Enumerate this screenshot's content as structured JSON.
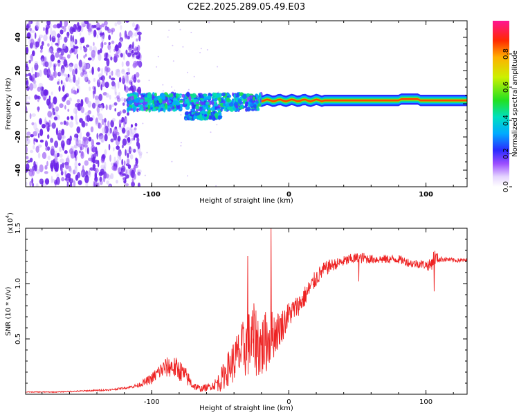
{
  "figure_title": "C2E2.2025.289.05.49.E03",
  "colors": {
    "snr_line": "#ee2222",
    "noise_dots": "#7a3cf0",
    "axis": "#000000"
  },
  "chart_data": [
    {
      "type": "heatmap",
      "id": "spectrogram",
      "title": "C2E2.2025.289.05.49.E03",
      "xlabel": "Height of straight line (km)",
      "ylabel": "Frequency (Hz)",
      "xlim": [
        -192,
        130
      ],
      "ylim": [
        -50,
        50
      ],
      "xticks": [
        -100,
        0,
        100
      ],
      "xtick_labels": [
        "-100",
        "0",
        "100"
      ],
      "yticks": [
        -40,
        -20,
        0,
        20,
        40
      ],
      "ytick_labels": [
        "-40",
        "-20",
        "0",
        "20",
        "40"
      ],
      "colorbar": {
        "label": "Normalized spectral amplitude",
        "range": [
          0,
          1
        ],
        "ticks": [
          0.0,
          0.2,
          0.4,
          0.6,
          0.8
        ],
        "tick_labels": [
          "0.0",
          "0.2",
          "0.4",
          "0.6",
          "0.8"
        ],
        "colormap": "rainbow"
      },
      "features": [
        {
          "name": "noise-field",
          "x_range": [
            -192,
            -108
          ],
          "y_range": [
            -50,
            50
          ],
          "amplitude": 0.18
        },
        {
          "name": "turbulent-band",
          "x_range": [
            -118,
            -20
          ],
          "center_freq": 1,
          "width_hz": 8,
          "amplitude": 0.35
        },
        {
          "name": "low-branch",
          "x_range": [
            -75,
            -50
          ],
          "center_freq": -7,
          "width_hz": 4,
          "amplitude": 0.4
        },
        {
          "name": "stable-line",
          "x_range": [
            -20,
            130
          ],
          "center_freq": 2,
          "width_hz": 3,
          "amplitude": 0.9
        }
      ]
    },
    {
      "type": "line",
      "id": "snr",
      "xlabel": "Height of straight line (km)",
      "ylabel": "SNR (10 * v/v)",
      "scale_note": "(x10",
      "scale_exp": "4",
      "scale_close": ")",
      "xlim": [
        -192,
        130
      ],
      "ylim": [
        0,
        1.5
      ],
      "xticks": [
        -100,
        0,
        100
      ],
      "xtick_labels": [
        "-100",
        "0",
        "100"
      ],
      "yticks": [
        0.5,
        1.0,
        1.5
      ],
      "ytick_labels": [
        "0.5",
        "1.0",
        "1.5"
      ],
      "series": [
        {
          "name": "SNR",
          "x": [
            -192,
            -170,
            -150,
            -130,
            -118,
            -110,
            -100,
            -95,
            -90,
            -85,
            -80,
            -75,
            -70,
            -65,
            -60,
            -55,
            -50,
            -45,
            -40,
            -35,
            -30,
            -25,
            -20,
            -15,
            -10,
            -5,
            0,
            5,
            10,
            15,
            20,
            25,
            30,
            35,
            40,
            45,
            50,
            55,
            60,
            65,
            70,
            75,
            80,
            85,
            90,
            95,
            100,
            103,
            106,
            110,
            115,
            120,
            125,
            130
          ],
          "values": [
            0.02,
            0.02,
            0.03,
            0.04,
            0.06,
            0.08,
            0.14,
            0.2,
            0.24,
            0.25,
            0.22,
            0.16,
            0.08,
            0.05,
            0.06,
            0.08,
            0.12,
            0.22,
            0.3,
            0.38,
            0.45,
            0.5,
            0.42,
            0.5,
            0.55,
            0.62,
            0.72,
            0.78,
            0.85,
            0.95,
            1.05,
            1.12,
            1.16,
            1.18,
            1.2,
            1.22,
            1.23,
            1.23,
            1.22,
            1.22,
            1.22,
            1.22,
            1.22,
            1.2,
            1.18,
            1.18,
            1.17,
            1.16,
            1.24,
            1.22,
            1.22,
            1.21,
            1.21,
            1.21
          ],
          "noise": [
            0.004,
            0.004,
            0.006,
            0.008,
            0.01,
            0.02,
            0.05,
            0.07,
            0.09,
            0.1,
            0.1,
            0.08,
            0.04,
            0.03,
            0.03,
            0.04,
            0.1,
            0.15,
            0.2,
            0.25,
            0.3,
            0.33,
            0.3,
            0.28,
            0.2,
            0.15,
            0.12,
            0.1,
            0.1,
            0.09,
            0.08,
            0.07,
            0.06,
            0.05,
            0.05,
            0.05,
            0.05,
            0.05,
            0.04,
            0.04,
            0.04,
            0.04,
            0.04,
            0.04,
            0.04,
            0.04,
            0.04,
            0.06,
            0.08,
            0.03,
            0.02,
            0.02,
            0.02,
            0.02
          ]
        }
      ],
      "spikes": [
        {
          "x": -13,
          "value": 1.5
        },
        {
          "x": -30,
          "value": 1.25
        },
        {
          "x": 51,
          "value": 1.02
        },
        {
          "x": 106,
          "value": 0.93
        }
      ]
    }
  ]
}
